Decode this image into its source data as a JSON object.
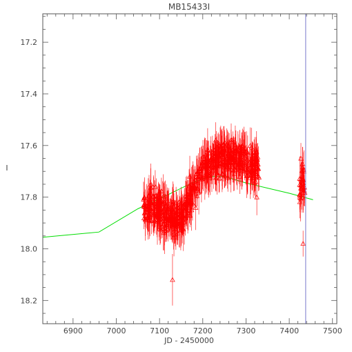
{
  "chart_data": {
    "type": "scatter",
    "title": "MB15433I",
    "xlabel": "JD - 2450000",
    "ylabel": "I",
    "xlim": [
      6830,
      7510
    ],
    "ylim": [
      18.29,
      17.09
    ],
    "y_inverted": true,
    "x_ticks": [
      6900,
      7000,
      7100,
      7200,
      7300,
      7400,
      7500
    ],
    "y_ticks": [
      17.2,
      17.4,
      17.6,
      17.8,
      18.0,
      18.2
    ],
    "grid": false,
    "legend": "none",
    "vertical_marker_x": 7438,
    "colors": {
      "points": "#ff0000",
      "model": "#00dd00",
      "marker": "#7777cc",
      "axes": "#555555"
    },
    "series": [
      {
        "kind": "observations",
        "marker": "triangle-up",
        "seasons": [
          {
            "x_range": [
              7062,
              7330
            ],
            "count": 620
          },
          {
            "x_range": [
              7424,
              7436
            ],
            "count": 30
          }
        ],
        "samples": [
          {
            "x": 7065,
            "y": 17.8,
            "err": 0.07
          },
          {
            "x": 7080,
            "y": 17.75,
            "err": 0.08
          },
          {
            "x": 7100,
            "y": 17.85,
            "err": 0.08
          },
          {
            "x": 7112,
            "y": 17.93,
            "err": 0.09
          },
          {
            "x": 7130,
            "y": 18.12,
            "err": 0.1
          },
          {
            "x": 7150,
            "y": 17.85,
            "err": 0.09
          },
          {
            "x": 7170,
            "y": 17.72,
            "err": 0.08
          },
          {
            "x": 7190,
            "y": 17.7,
            "err": 0.07
          },
          {
            "x": 7210,
            "y": 17.65,
            "err": 0.07
          },
          {
            "x": 7230,
            "y": 17.58,
            "err": 0.07
          },
          {
            "x": 7250,
            "y": 17.62,
            "err": 0.07
          },
          {
            "x": 7270,
            "y": 17.65,
            "err": 0.07
          },
          {
            "x": 7290,
            "y": 17.7,
            "err": 0.07
          },
          {
            "x": 7310,
            "y": 17.6,
            "err": 0.07
          },
          {
            "x": 7325,
            "y": 17.8,
            "err": 0.07
          },
          {
            "x": 7427,
            "y": 17.65,
            "err": 0.06
          },
          {
            "x": 7430,
            "y": 17.8,
            "err": 0.06
          },
          {
            "x": 7432,
            "y": 17.98,
            "err": 0.05
          }
        ]
      },
      {
        "kind": "model",
        "x": [
          6830,
          6960,
          7050,
          7120,
          7175,
          7215,
          7250,
          7300,
          7350,
          7400,
          7455
        ],
        "y": [
          17.955,
          17.935,
          17.845,
          17.79,
          17.745,
          17.72,
          17.72,
          17.745,
          17.765,
          17.785,
          17.81
        ]
      }
    ]
  }
}
